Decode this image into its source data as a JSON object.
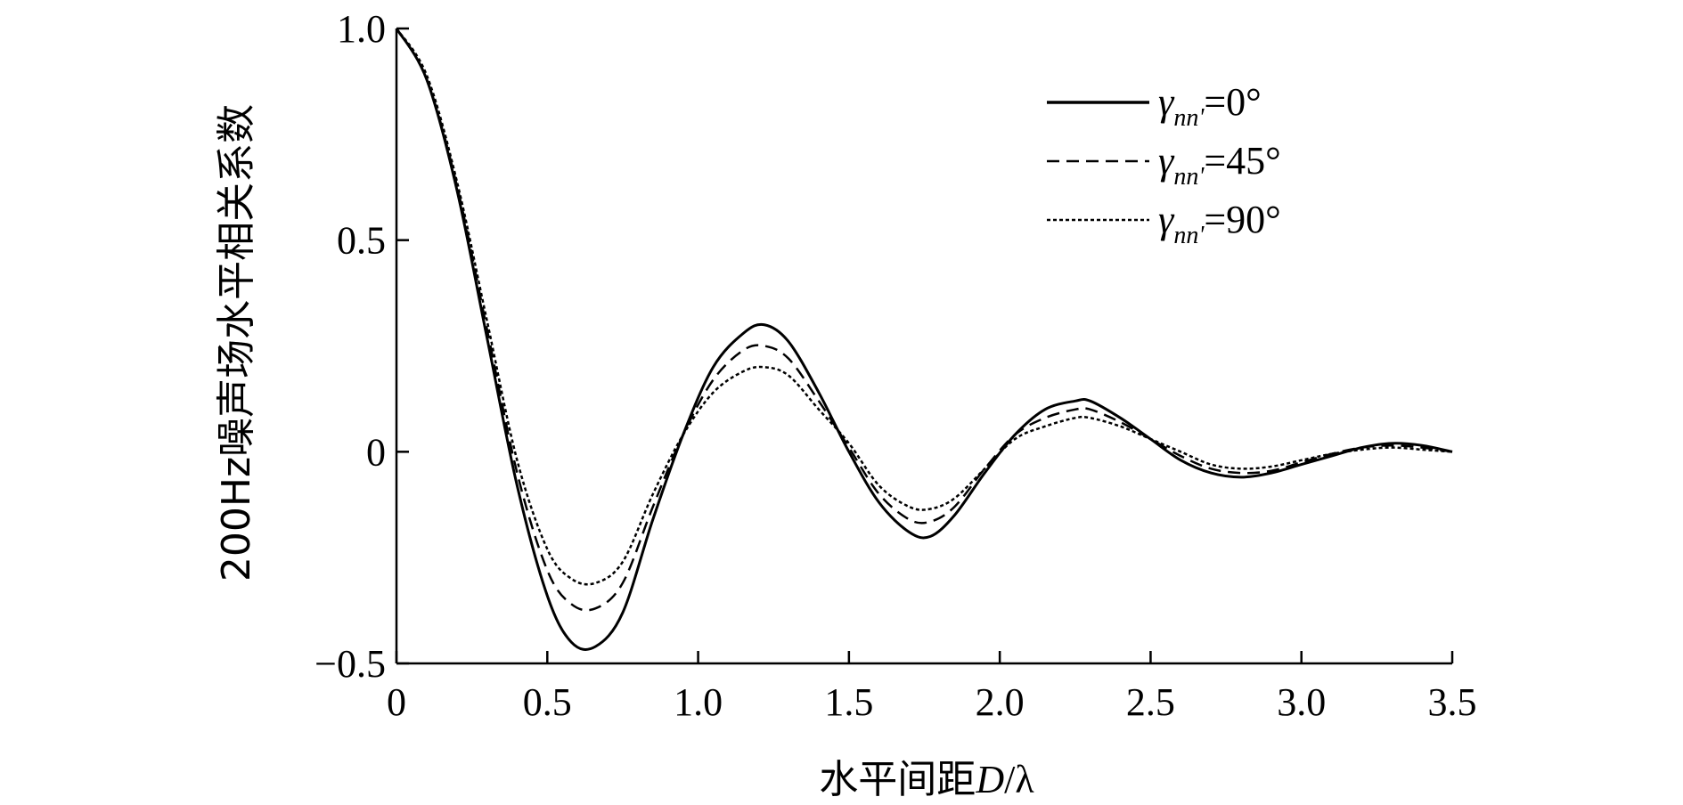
{
  "chart_data": {
    "type": "line",
    "title": "",
    "xlabel": {
      "prefix": "水平间距",
      "var": "D",
      "slash": "/",
      "unit": "λ"
    },
    "ylabel": "200Hz噪声场水平相关系数",
    "xlim": [
      0,
      3.5
    ],
    "ylim": [
      -0.5,
      1.0
    ],
    "x_ticks": [
      0,
      0.5,
      1.0,
      1.5,
      2.0,
      2.5,
      3.0,
      3.5
    ],
    "x_tick_labels": [
      "0",
      "0.5",
      "1.0",
      "1.5",
      "2.0",
      "2.5",
      "3.0",
      "3.5"
    ],
    "y_ticks": [
      -0.5,
      0,
      0.5,
      1.0
    ],
    "y_tick_labels": [
      "−0.5",
      "0",
      "0.5",
      "1.0"
    ],
    "legend_position": "top-right",
    "grid": false,
    "series": [
      {
        "name": "=0°",
        "label_symbol": "γ",
        "label_sub": "nn'",
        "label_value": "=0°",
        "style": "solid",
        "x": [
          0,
          0.1,
          0.2,
          0.3,
          0.4,
          0.5,
          0.58,
          0.66,
          0.75,
          0.85,
          0.95,
          1.05,
          1.15,
          1.22,
          1.3,
          1.4,
          1.5,
          1.6,
          1.7,
          1.77,
          1.85,
          1.95,
          2.05,
          2.15,
          2.25,
          2.3,
          2.4,
          2.5,
          2.6,
          2.7,
          2.8,
          2.9,
          3.0,
          3.1,
          3.2,
          3.3,
          3.4,
          3.5
        ],
        "y": [
          1.0,
          0.88,
          0.62,
          0.27,
          -0.08,
          -0.34,
          -0.45,
          -0.46,
          -0.38,
          -0.16,
          0.04,
          0.2,
          0.28,
          0.3,
          0.26,
          0.14,
          0.0,
          -0.12,
          -0.19,
          -0.2,
          -0.15,
          -0.05,
          0.04,
          0.1,
          0.12,
          0.12,
          0.08,
          0.03,
          -0.02,
          -0.05,
          -0.06,
          -0.05,
          -0.03,
          -0.01,
          0.01,
          0.02,
          0.015,
          0.0
        ]
      },
      {
        "name": "=45°",
        "label_symbol": "γ",
        "label_sub": "nn'",
        "label_value": "=45°",
        "style": "dashed",
        "x": [
          0,
          0.1,
          0.2,
          0.3,
          0.4,
          0.5,
          0.58,
          0.66,
          0.75,
          0.85,
          0.95,
          1.05,
          1.15,
          1.22,
          1.3,
          1.4,
          1.5,
          1.6,
          1.7,
          1.77,
          1.85,
          1.95,
          2.05,
          2.15,
          2.25,
          2.3,
          2.4,
          2.5,
          2.6,
          2.7,
          2.8,
          2.9,
          3.0,
          3.1,
          3.2,
          3.3,
          3.4,
          3.5
        ],
        "y": [
          1.0,
          0.88,
          0.63,
          0.29,
          -0.05,
          -0.28,
          -0.36,
          -0.37,
          -0.31,
          -0.13,
          0.04,
          0.17,
          0.24,
          0.25,
          0.22,
          0.12,
          0.01,
          -0.1,
          -0.16,
          -0.165,
          -0.13,
          -0.04,
          0.04,
          0.08,
          0.1,
          0.1,
          0.07,
          0.03,
          -0.01,
          -0.04,
          -0.05,
          -0.045,
          -0.025,
          -0.005,
          0.01,
          0.015,
          0.01,
          0.0
        ]
      },
      {
        "name": "=90°",
        "label_symbol": "γ",
        "label_sub": "nn'",
        "label_value": "=90°",
        "style": "dotted",
        "x": [
          0,
          0.1,
          0.2,
          0.3,
          0.4,
          0.5,
          0.58,
          0.66,
          0.75,
          0.85,
          0.95,
          1.05,
          1.15,
          1.22,
          1.3,
          1.4,
          1.5,
          1.6,
          1.7,
          1.77,
          1.85,
          1.95,
          2.05,
          2.15,
          2.25,
          2.3,
          2.4,
          2.5,
          2.6,
          2.7,
          2.8,
          2.9,
          3.0,
          3.1,
          3.2,
          3.3,
          3.4,
          3.5
        ],
        "y": [
          1.0,
          0.89,
          0.64,
          0.31,
          -0.02,
          -0.23,
          -0.3,
          -0.31,
          -0.26,
          -0.1,
          0.04,
          0.14,
          0.19,
          0.2,
          0.18,
          0.1,
          0.02,
          -0.08,
          -0.13,
          -0.135,
          -0.11,
          -0.04,
          0.03,
          0.06,
          0.08,
          0.08,
          0.06,
          0.03,
          0.0,
          -0.03,
          -0.04,
          -0.035,
          -0.02,
          -0.005,
          0.005,
          0.01,
          0.005,
          0.0
        ]
      }
    ]
  }
}
